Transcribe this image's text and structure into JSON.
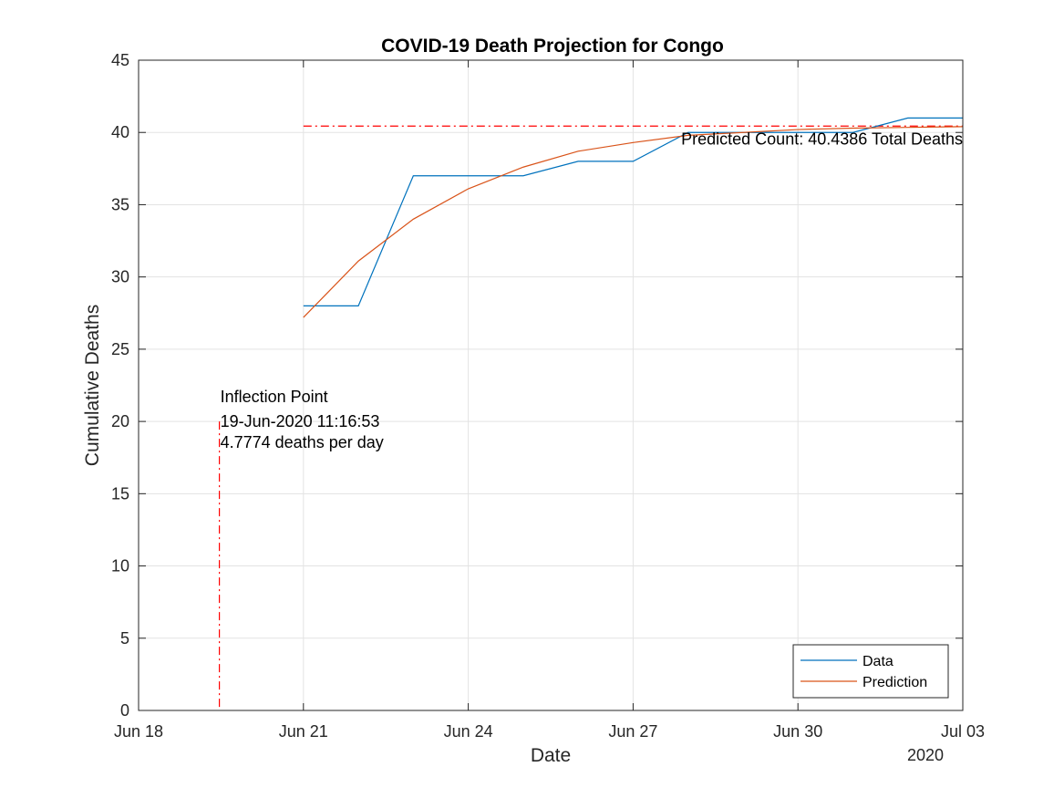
{
  "chart_data": {
    "type": "line",
    "title": "COVID-19 Death Projection for Congo",
    "xlabel": "Date",
    "ylabel": "Cumulative Deaths",
    "x_year_label": "2020",
    "xlim": [
      "2020-06-18",
      "2020-07-03"
    ],
    "ylim": [
      0,
      45
    ],
    "x_ticks": [
      {
        "date": "2020-06-18",
        "label": "Jun 18"
      },
      {
        "date": "2020-06-21",
        "label": "Jun 21"
      },
      {
        "date": "2020-06-24",
        "label": "Jun 24"
      },
      {
        "date": "2020-06-27",
        "label": "Jun 27"
      },
      {
        "date": "2020-06-30",
        "label": "Jun 30"
      },
      {
        "date": "2020-07-03",
        "label": "Jul 03"
      }
    ],
    "y_ticks": [
      0,
      5,
      10,
      15,
      20,
      25,
      30,
      35,
      40,
      45
    ],
    "grid": true,
    "legend_position": "bottom-right",
    "series": [
      {
        "name": "Data",
        "color": "#0072bd",
        "x": [
          "2020-06-21",
          "2020-06-22",
          "2020-06-23",
          "2020-06-24",
          "2020-06-25",
          "2020-06-26",
          "2020-06-27",
          "2020-06-28",
          "2020-06-29",
          "2020-06-30",
          "2020-07-01",
          "2020-07-02",
          "2020-07-03"
        ],
        "y": [
          28,
          28,
          37,
          37,
          37,
          38,
          38,
          40,
          40,
          40,
          40,
          41,
          41
        ]
      },
      {
        "name": "Prediction",
        "color": "#d95319",
        "x": [
          "2020-06-21",
          "2020-06-22",
          "2020-06-23",
          "2020-06-24",
          "2020-06-25",
          "2020-06-26",
          "2020-06-27",
          "2020-06-28",
          "2020-06-29",
          "2020-06-30",
          "2020-07-01",
          "2020-07-02",
          "2020-07-03"
        ],
        "y": [
          27.2,
          31.1,
          34.0,
          36.1,
          37.6,
          38.7,
          39.3,
          39.8,
          40.0,
          40.2,
          40.3,
          40.35,
          40.4
        ]
      }
    ],
    "reference_lines": {
      "color": "#ff0000",
      "predicted_count": 40.4386,
      "predicted_line_start": "2020-06-21",
      "inflection_date": "2020-06-19T11:16:53",
      "inflection_top": 20
    },
    "annotations": {
      "predicted_label": "Predicted Count: 40.4386 Total Deaths",
      "inflection_lines": [
        "Inflection Point",
        "19-Jun-2020 11:16:53",
        "4.7774 deaths per day"
      ]
    }
  }
}
